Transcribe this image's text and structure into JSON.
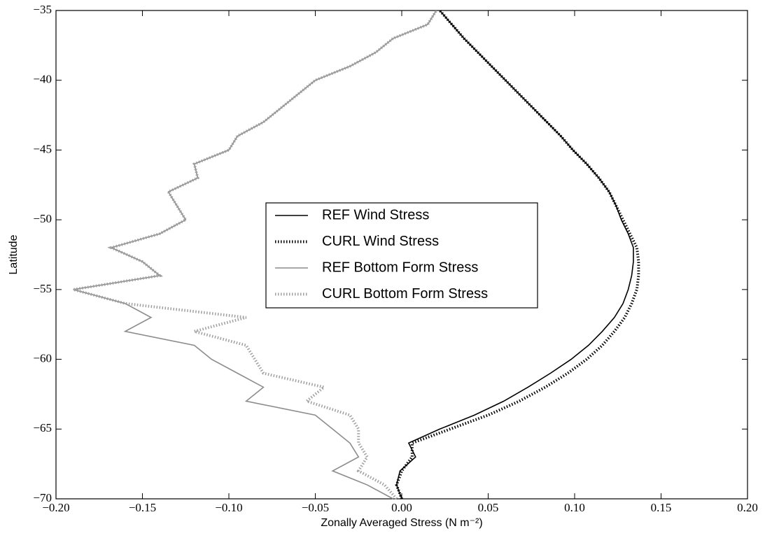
{
  "chart_data": {
    "type": "line",
    "xlabel": "Zonally Averaged Stress (N m⁻²)",
    "ylabel": "Latitude",
    "xlim": [
      -0.2,
      0.2
    ],
    "ylim": [
      -70,
      -35
    ],
    "xticks": [
      {
        "value": -0.2,
        "label": "−0.20"
      },
      {
        "value": -0.15,
        "label": "−0.15"
      },
      {
        "value": -0.1,
        "label": "−0.10"
      },
      {
        "value": -0.05,
        "label": "−0.05"
      },
      {
        "value": 0,
        "label": "0.00"
      },
      {
        "value": 0.05,
        "label": "0.05"
      },
      {
        "value": 0.1,
        "label": "0.10"
      },
      {
        "value": 0.15,
        "label": "0.15"
      },
      {
        "value": 0.2,
        "label": "0.20"
      }
    ],
    "yticks": [
      {
        "value": -70,
        "label": "−70"
      },
      {
        "value": -65,
        "label": "−65"
      },
      {
        "value": -60,
        "label": "−60"
      },
      {
        "value": -55,
        "label": "−55"
      },
      {
        "value": -50,
        "label": "−50"
      },
      {
        "value": -45,
        "label": "−45"
      },
      {
        "value": -40,
        "label": "−40"
      },
      {
        "value": -35,
        "label": "−35"
      }
    ],
    "latitudes": [
      -70,
      -69,
      -68,
      -67,
      -66,
      -65,
      -64,
      -63,
      -62,
      -61,
      -60,
      -59,
      -58,
      -57,
      -56,
      -55,
      -54,
      -53,
      -52,
      -51,
      -50,
      -49,
      -48,
      -47,
      -46,
      -45,
      -44,
      -43,
      -42,
      -41,
      -40,
      -39,
      -38,
      -37,
      -36,
      -35
    ],
    "series": [
      {
        "name": "REF Wind Stress",
        "color": "#000000",
        "style": "solid",
        "values": [
          0.0,
          -0.003,
          -0.001,
          0.008,
          0.004,
          0.022,
          0.042,
          0.059,
          0.073,
          0.086,
          0.098,
          0.108,
          0.116,
          0.123,
          0.128,
          0.131,
          0.133,
          0.134,
          0.134,
          0.131,
          0.127,
          0.124,
          0.12,
          0.114,
          0.107,
          0.099,
          0.092,
          0.084,
          0.076,
          0.068,
          0.06,
          0.052,
          0.044,
          0.036,
          0.029,
          0.022
        ]
      },
      {
        "name": "CURL Wind Stress",
        "color": "#000000",
        "style": "dotted",
        "values": [
          0.0,
          -0.003,
          0.0,
          0.006,
          0.006,
          0.028,
          0.05,
          0.068,
          0.083,
          0.096,
          0.107,
          0.116,
          0.123,
          0.129,
          0.133,
          0.136,
          0.137,
          0.137,
          0.136,
          0.132,
          0.128,
          0.124,
          0.12,
          0.114,
          0.107,
          0.099,
          0.092,
          0.084,
          0.076,
          0.068,
          0.06,
          0.052,
          0.044,
          0.036,
          0.029,
          0.022
        ]
      },
      {
        "name": "REF Bottom Form Stress",
        "color": "#8c8c8c",
        "style": "solid",
        "values": [
          -0.005,
          -0.02,
          -0.04,
          -0.025,
          -0.03,
          -0.04,
          -0.05,
          -0.09,
          -0.08,
          -0.095,
          -0.11,
          -0.12,
          -0.16,
          -0.145,
          -0.16,
          -0.19,
          -0.14,
          -0.15,
          -0.168,
          -0.14,
          -0.125,
          -0.13,
          -0.135,
          -0.118,
          -0.12,
          -0.1,
          -0.095,
          -0.08,
          -0.07,
          -0.06,
          -0.05,
          -0.03,
          -0.015,
          -0.005,
          0.015,
          0.02
        ]
      },
      {
        "name": "CURL Bottom Form Stress",
        "color": "#a0a0a0",
        "style": "dotted",
        "values": [
          -0.003,
          -0.01,
          -0.025,
          -0.02,
          -0.025,
          -0.025,
          -0.03,
          -0.055,
          -0.045,
          -0.08,
          -0.085,
          -0.09,
          -0.12,
          -0.09,
          -0.16,
          -0.19,
          -0.14,
          -0.15,
          -0.168,
          -0.14,
          -0.125,
          -0.13,
          -0.135,
          -0.118,
          -0.12,
          -0.1,
          -0.095,
          -0.08,
          -0.07,
          -0.06,
          -0.05,
          -0.03,
          -0.015,
          -0.005,
          0.015,
          0.02
        ]
      }
    ]
  }
}
